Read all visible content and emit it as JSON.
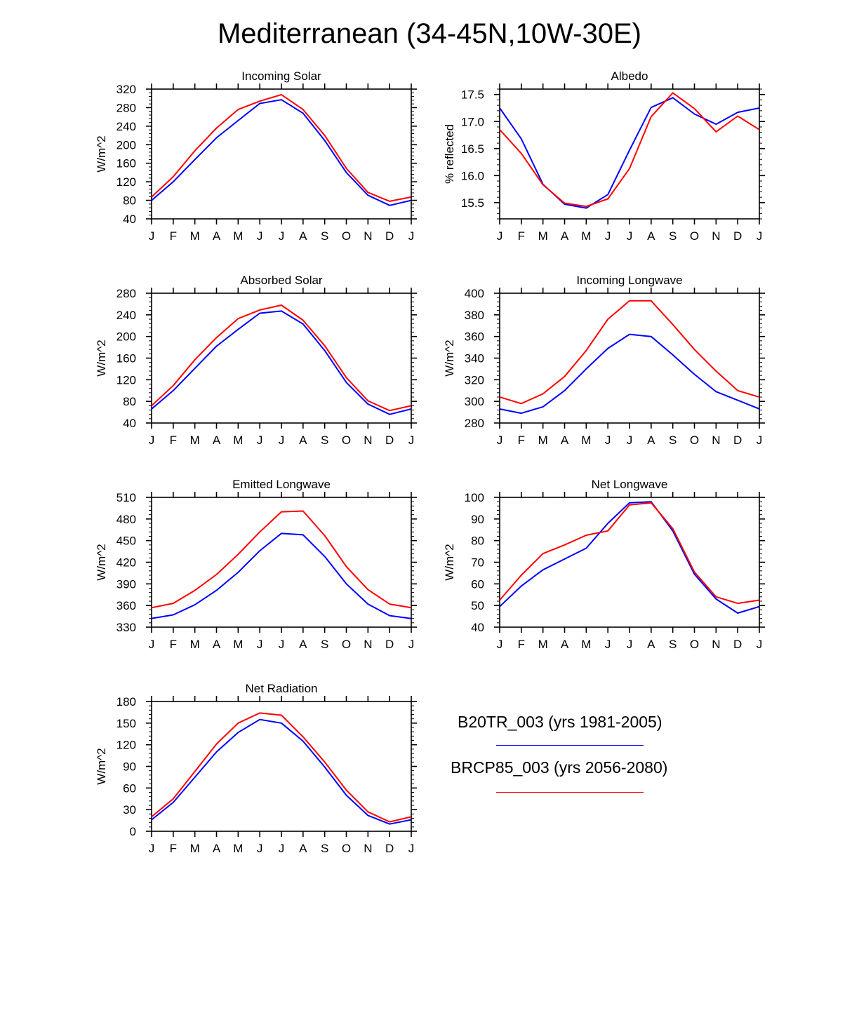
{
  "title": "Mediterranean (34-45N,10W-30E)",
  "months": [
    "J",
    "F",
    "M",
    "A",
    "M",
    "J",
    "J",
    "A",
    "S",
    "O",
    "N",
    "D",
    "J"
  ],
  "colors": {
    "blue": "#0000ff",
    "red": "#ff0000"
  },
  "legend": [
    {
      "label": "B20TR_003 (yrs 1981-2005)",
      "color": "#0000ff"
    },
    {
      "label": "BRCP85_003 (yrs 2056-2080)",
      "color": "#ff0000"
    }
  ],
  "chart_data": [
    {
      "type": "line",
      "title": "Incoming Solar",
      "ylabel": "W/m^2",
      "ylim": [
        40,
        320
      ],
      "yticks": [
        "40",
        "80",
        "120",
        "160",
        "200",
        "240",
        "280",
        "320"
      ],
      "ytick_values": [
        40,
        80,
        120,
        160,
        200,
        240,
        280,
        320
      ],
      "minor": 5,
      "series": [
        {
          "name": "B20TR_003 (yrs 1981-2005)",
          "color": "#0000ff",
          "values": [
            80,
            120,
            168,
            215,
            252,
            289,
            297,
            268,
            209,
            140,
            91,
            69,
            80
          ]
        },
        {
          "name": "BRCP85_003 (yrs 2056-2080)",
          "color": "#ff0000",
          "values": [
            87,
            131,
            187,
            236,
            276,
            294,
            308,
            276,
            220,
            149,
            97,
            78,
            87
          ]
        }
      ]
    },
    {
      "type": "line",
      "title": "Albedo",
      "ylabel": "% reflected",
      "ylim": [
        15.2,
        17.6
      ],
      "yticks": [
        "15.5",
        "16.0",
        "16.5",
        "17.0",
        "17.5"
      ],
      "ytick_values": [
        15.5,
        16.0,
        16.5,
        17.0,
        17.5
      ],
      "minor": 5,
      "series": [
        {
          "name": "B20TR_003 (yrs 1981-2005)",
          "color": "#0000ff",
          "values": [
            17.25,
            16.68,
            15.84,
            15.47,
            15.4,
            15.65,
            16.47,
            17.26,
            17.44,
            17.14,
            16.95,
            17.17,
            17.25
          ]
        },
        {
          "name": "BRCP85_003 (yrs 2056-2080)",
          "color": "#ff0000",
          "values": [
            16.85,
            16.41,
            15.83,
            15.49,
            15.43,
            15.57,
            16.13,
            17.09,
            17.53,
            17.24,
            16.81,
            17.1,
            16.85
          ]
        }
      ]
    },
    {
      "type": "line",
      "title": "Absorbed Solar",
      "ylabel": "W/m^2",
      "ylim": [
        40,
        280
      ],
      "yticks": [
        "40",
        "80",
        "120",
        "160",
        "200",
        "240",
        "280"
      ],
      "ytick_values": [
        40,
        80,
        120,
        160,
        200,
        240,
        280
      ],
      "minor": 5,
      "series": [
        {
          "name": "B20TR_003 (yrs 1981-2005)",
          "color": "#0000ff",
          "values": [
            66,
            100,
            141,
            182,
            213,
            243,
            247,
            223,
            174,
            115,
            75,
            56,
            66
          ]
        },
        {
          "name": "BRCP85_003 (yrs 2056-2080)",
          "color": "#ff0000",
          "values": [
            72,
            109,
            157,
            198,
            233,
            249,
            258,
            230,
            183,
            124,
            81,
            63,
            72
          ]
        }
      ]
    },
    {
      "type": "line",
      "title": "Incoming Longwave",
      "ylabel": "W/m^2",
      "ylim": [
        280,
        400
      ],
      "yticks": [
        "280",
        "300",
        "320",
        "340",
        "360",
        "380",
        "400"
      ],
      "ytick_values": [
        280,
        300,
        320,
        340,
        360,
        380,
        400
      ],
      "minor": 5,
      "series": [
        {
          "name": "B20TR_003 (yrs 1981-2005)",
          "color": "#0000ff",
          "values": [
            293,
            289,
            295,
            310,
            330,
            349,
            362,
            360,
            343,
            325,
            309,
            301,
            293
          ]
        },
        {
          "name": "BRCP85_003 (yrs 2056-2080)",
          "color": "#ff0000",
          "values": [
            304,
            298,
            307,
            323,
            347,
            376,
            393,
            393,
            371,
            348,
            328,
            310,
            304
          ]
        }
      ]
    },
    {
      "type": "line",
      "title": "Emitted Longwave",
      "ylabel": "W/m^2",
      "ylim": [
        330,
        510
      ],
      "yticks": [
        "330",
        "360",
        "390",
        "420",
        "450",
        "480",
        "510"
      ],
      "ytick_values": [
        330,
        360,
        390,
        420,
        450,
        480,
        510
      ],
      "minor": 5,
      "series": [
        {
          "name": "B20TR_003 (yrs 1981-2005)",
          "color": "#0000ff",
          "values": [
            342,
            347,
            361,
            381,
            406,
            436,
            460,
            458,
            428,
            390,
            362,
            346,
            342
          ]
        },
        {
          "name": "BRCP85_003 (yrs 2056-2080)",
          "color": "#ff0000",
          "values": [
            357,
            363,
            381,
            403,
            431,
            462,
            490,
            491,
            457,
            414,
            382,
            362,
            357
          ]
        }
      ]
    },
    {
      "type": "line",
      "title": "Net Longwave",
      "ylabel": "W/m^2",
      "ylim": [
        40,
        100
      ],
      "yticks": [
        "40",
        "50",
        "60",
        "70",
        "80",
        "90",
        "100"
      ],
      "ytick_values": [
        40,
        50,
        60,
        70,
        80,
        90,
        100
      ],
      "minor": 5,
      "series": [
        {
          "name": "B20TR_003 (yrs 1981-2005)",
          "color": "#0000ff",
          "values": [
            49.5,
            59.0,
            66.5,
            71.5,
            76.5,
            88.0,
            97.5,
            98.0,
            84.5,
            64.5,
            53.0,
            46.5,
            49.5
          ]
        },
        {
          "name": "BRCP85_003 (yrs 2056-2080)",
          "color": "#ff0000",
          "values": [
            52.5,
            64.0,
            74.0,
            78.0,
            82.5,
            84.5,
            96.5,
            97.5,
            85.5,
            65.5,
            54.0,
            51.0,
            52.5
          ]
        }
      ]
    },
    {
      "type": "line",
      "title": "Net Radiation",
      "ylabel": "W/m^2",
      "ylim": [
        0,
        180
      ],
      "yticks": [
        "0",
        "30",
        "60",
        "90",
        "120",
        "150",
        "180"
      ],
      "ytick_values": [
        0,
        30,
        60,
        90,
        120,
        150,
        180
      ],
      "minor": 5,
      "series": [
        {
          "name": "B20TR_003 (yrs 1981-2005)",
          "color": "#0000ff",
          "values": [
            16,
            40,
            75,
            110,
            137,
            155,
            150,
            125,
            89,
            50,
            22,
            10,
            16
          ]
        },
        {
          "name": "BRCP85_003 (yrs 2056-2080)",
          "color": "#ff0000",
          "values": [
            20,
            45,
            83,
            121,
            150,
            164,
            161,
            131,
            96,
            57,
            27,
            13,
            20
          ]
        }
      ]
    }
  ]
}
